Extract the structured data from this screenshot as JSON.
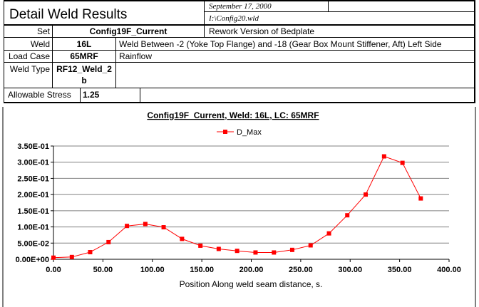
{
  "report": {
    "title": "Detail Weld Results",
    "date": "September 17, 2000",
    "file": "I:\\Config20.wld",
    "rows": {
      "set_label": "Set",
      "set_value": "Config19F_Current",
      "set_desc": "Rework Version of Bedplate",
      "weld_label": "Weld",
      "weld_value": "16L",
      "weld_desc": "Weld Between -2 (Yoke Top Flange) and -18 (Gear Box Mount Stiffener, Aft) Left Side",
      "loadcase_label": "Load Case",
      "loadcase_value": "65MRF",
      "loadcase_desc": "Rainflow",
      "weldtype_label": "Weld Type",
      "weldtype_value_line1": "RF12_Weld_2",
      "weldtype_value_line2": "b",
      "stress_label": "Allowable Stress",
      "stress_value": "1.25"
    }
  },
  "chart_data": {
    "type": "line",
    "title": "Config19F_Current, Weld: 16L, LC: 65MRF",
    "xlabel": "Position Along weld seam distance, s.",
    "ylabel": "",
    "xlim": [
      0,
      400
    ],
    "ylim": [
      0,
      0.35
    ],
    "x_ticks": [
      0,
      50,
      100,
      150,
      200,
      250,
      300,
      350,
      400
    ],
    "x_tick_labels": [
      "0.00",
      "50.00",
      "100.00",
      "150.00",
      "200.00",
      "250.00",
      "300.00",
      "350.00",
      "400.00"
    ],
    "y_ticks": [
      0,
      0.05,
      0.1,
      0.15,
      0.2,
      0.25,
      0.3,
      0.35
    ],
    "y_tick_labels": [
      "0.00E+00",
      "5.00E-02",
      "1.00E-01",
      "1.50E-01",
      "2.00E-01",
      "2.50E-01",
      "3.00E-01",
      "3.50E-01"
    ],
    "grid": "horizontal",
    "legend_position": "top-center",
    "series_color": "#ff0000",
    "series": [
      {
        "name": "D_Max",
        "x": [
          0,
          18.6,
          37.1,
          55.7,
          74.3,
          92.9,
          111.4,
          130,
          148.6,
          167.1,
          185.7,
          204.3,
          222.9,
          241.4,
          260,
          278.6,
          297.1,
          315.7,
          334.3,
          352.9,
          371.4
        ],
        "y": [
          0.005,
          0.007,
          0.022,
          0.053,
          0.103,
          0.109,
          0.099,
          0.063,
          0.042,
          0.032,
          0.026,
          0.021,
          0.021,
          0.029,
          0.043,
          0.08,
          0.136,
          0.2,
          0.318,
          0.298,
          0.188
        ]
      }
    ]
  }
}
